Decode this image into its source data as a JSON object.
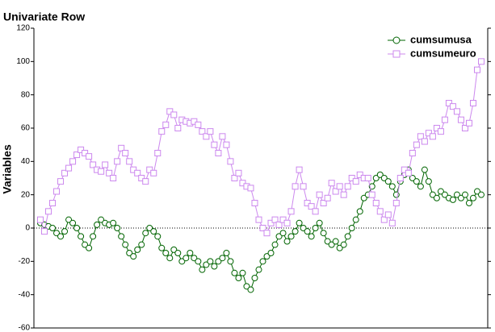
{
  "chart_data": {
    "type": "line",
    "title": "Univariate Row",
    "ylabel": "Variables",
    "ylim": [
      -60,
      120
    ],
    "yticks": [
      -60,
      -40,
      -20,
      0,
      20,
      40,
      60,
      80,
      100,
      120
    ],
    "legend": "upper right",
    "series": [
      {
        "name": "cumsumusa",
        "color": "#006400",
        "marker": "circle",
        "values": [
          3,
          2,
          1,
          0,
          -3,
          -5,
          -2,
          5,
          3,
          0,
          -5,
          -10,
          -12,
          -5,
          2,
          5,
          3,
          2,
          3,
          0,
          -5,
          -10,
          -15,
          -17,
          -13,
          -10,
          -3,
          0,
          -2,
          -5,
          -12,
          -15,
          -18,
          -13,
          -15,
          -20,
          -18,
          -15,
          -18,
          -20,
          -25,
          -22,
          -20,
          -23,
          -20,
          -18,
          -15,
          -20,
          -27,
          -30,
          -27,
          -35,
          -37,
          -30,
          -25,
          -20,
          -17,
          -15,
          -10,
          -5,
          -3,
          -8,
          -5,
          -2,
          3,
          0,
          -2,
          -5,
          0,
          3,
          -3,
          -8,
          -10,
          -8,
          -12,
          -10,
          -5,
          0,
          5,
          10,
          18,
          20,
          25,
          30,
          32,
          30,
          28,
          25,
          20,
          28,
          32,
          35,
          30,
          28,
          25,
          35,
          28,
          20,
          18,
          22,
          20,
          18,
          17,
          20,
          18,
          20,
          15,
          18,
          22,
          20
        ]
      },
      {
        "name": "cumsumeuro",
        "color": "#cc88ee",
        "marker": "square",
        "values": [
          5,
          -2,
          10,
          15,
          22,
          28,
          33,
          36,
          40,
          44,
          47,
          45,
          43,
          38,
          35,
          34,
          38,
          33,
          30,
          40,
          48,
          45,
          40,
          35,
          33,
          30,
          28,
          35,
          33,
          45,
          58,
          62,
          70,
          68,
          60,
          65,
          64,
          63,
          64,
          62,
          58,
          55,
          58,
          50,
          45,
          55,
          50,
          40,
          30,
          33,
          27,
          25,
          24,
          15,
          5,
          0,
          -3,
          3,
          5,
          2,
          5,
          3,
          10,
          25,
          35,
          25,
          15,
          13,
          10,
          20,
          15,
          18,
          27,
          22,
          25,
          20,
          25,
          30,
          28,
          32,
          30,
          30,
          20,
          15,
          10,
          5,
          8,
          3,
          15,
          30,
          35,
          33,
          45,
          50,
          55,
          52,
          57,
          55,
          60,
          58,
          65,
          75,
          73,
          70,
          65,
          60,
          63,
          75,
          95,
          100
        ]
      }
    ]
  }
}
